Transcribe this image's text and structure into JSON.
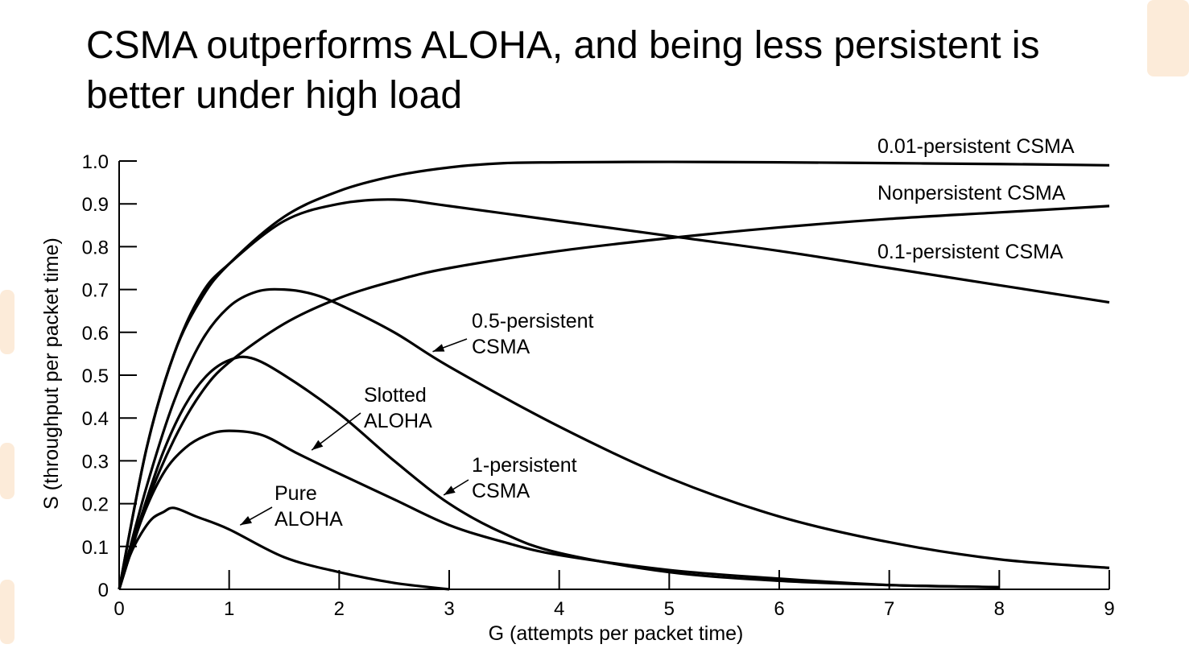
{
  "slide": {
    "title_line1": "CSMA outperforms ALOHA, and being less persistent is",
    "title_line2": "better under high load"
  },
  "colors": {
    "ink": "#000000",
    "background": "#ffffff",
    "accent": "#f5a34a"
  },
  "chart_data": {
    "type": "line",
    "xlabel": "G (attempts per packet time)",
    "ylabel": "S (throughput per packet time)",
    "xlim": [
      0,
      9
    ],
    "ylim": [
      0,
      1.0
    ],
    "x_ticks": [
      "0",
      "1",
      "2",
      "3",
      "4",
      "5",
      "6",
      "7",
      "8",
      "9"
    ],
    "y_ticks": [
      "0",
      "0.1",
      "0.2",
      "0.3",
      "0.4",
      "0.5",
      "0.6",
      "0.7",
      "0.8",
      "0.9",
      "1.0"
    ],
    "grid": false,
    "series": [
      {
        "name": "Pure ALOHA",
        "x": [
          0,
          0.1,
          0.2,
          0.3,
          0.4,
          0.5,
          0.7,
          1,
          1.5,
          2,
          2.5,
          3
        ],
        "y": [
          0,
          0.08,
          0.13,
          0.165,
          0.18,
          0.19,
          0.17,
          0.14,
          0.075,
          0.04,
          0.015,
          0.0
        ]
      },
      {
        "name": "Slotted ALOHA",
        "x": [
          0,
          0.2,
          0.4,
          0.6,
          0.8,
          1,
          1.3,
          1.6,
          2,
          2.5,
          3,
          3.5,
          4,
          5,
          6,
          7,
          8
        ],
        "y": [
          0,
          0.16,
          0.27,
          0.33,
          0.36,
          0.37,
          0.36,
          0.32,
          0.27,
          0.21,
          0.15,
          0.11,
          0.08,
          0.045,
          0.025,
          0.01,
          0.005
        ]
      },
      {
        "name": "1-persistent CSMA",
        "x": [
          0,
          0.2,
          0.4,
          0.6,
          0.8,
          1,
          1.2,
          1.5,
          2,
          2.5,
          3,
          3.5,
          4,
          5,
          6,
          7,
          8
        ],
        "y": [
          0,
          0.17,
          0.32,
          0.43,
          0.5,
          0.535,
          0.54,
          0.5,
          0.41,
          0.3,
          0.2,
          0.13,
          0.085,
          0.04,
          0.02,
          0.01,
          0.005
        ]
      },
      {
        "name": "0.5-persistent CSMA",
        "x": [
          0,
          0.25,
          0.5,
          0.75,
          1,
          1.25,
          1.5,
          1.75,
          2,
          2.5,
          3,
          4,
          5,
          6,
          7,
          8,
          9
        ],
        "y": [
          0,
          0.24,
          0.44,
          0.58,
          0.66,
          0.695,
          0.7,
          0.69,
          0.665,
          0.6,
          0.52,
          0.38,
          0.26,
          0.17,
          0.11,
          0.07,
          0.05
        ]
      },
      {
        "name": "Nonpersistent CSMA",
        "x": [
          0,
          0.25,
          0.5,
          0.75,
          1,
          1.5,
          2,
          2.5,
          3,
          4,
          5,
          6,
          7,
          8,
          9
        ],
        "y": [
          0,
          0.2,
          0.35,
          0.46,
          0.53,
          0.62,
          0.68,
          0.72,
          0.75,
          0.79,
          0.82,
          0.845,
          0.865,
          0.88,
          0.895
        ]
      },
      {
        "name": "0.1-persistent CSMA",
        "x": [
          0,
          0.25,
          0.5,
          0.75,
          1,
          1.5,
          2,
          2.5,
          3,
          4,
          5,
          6,
          7,
          8,
          9
        ],
        "y": [
          0,
          0.33,
          0.55,
          0.69,
          0.76,
          0.86,
          0.9,
          0.91,
          0.895,
          0.86,
          0.825,
          0.79,
          0.75,
          0.71,
          0.67
        ]
      },
      {
        "name": "0.01-persistent CSMA",
        "x": [
          0,
          0.25,
          0.5,
          0.75,
          1,
          1.5,
          2,
          2.5,
          3,
          3.5,
          4,
          5,
          6,
          7,
          8,
          9
        ],
        "y": [
          0,
          0.33,
          0.55,
          0.68,
          0.76,
          0.87,
          0.93,
          0.965,
          0.985,
          0.995,
          0.997,
          0.998,
          0.997,
          0.995,
          0.993,
          0.99
        ]
      }
    ],
    "annotations": [
      {
        "id": "ann-001",
        "lines": [
          "0.01-persistent CSMA"
        ],
        "anchor": "end-label",
        "series": "0.01-persistent CSMA"
      },
      {
        "id": "ann-nonp",
        "lines": [
          "Nonpersistent CSMA"
        ],
        "anchor": "end-label",
        "series": "Nonpersistent CSMA"
      },
      {
        "id": "ann-01",
        "lines": [
          "0.1-persistent CSMA"
        ],
        "anchor": "end-label",
        "series": "0.1-persistent CSMA"
      },
      {
        "id": "ann-05",
        "lines": [
          "0.5-persistent",
          "CSMA"
        ],
        "arrow_to": [
          2.85,
          0.555
        ],
        "series": "0.5-persistent CSMA"
      },
      {
        "id": "ann-slotted",
        "lines": [
          "Slotted",
          "ALOHA"
        ],
        "arrow_to": [
          1.75,
          0.325
        ],
        "series": "Slotted ALOHA"
      },
      {
        "id": "ann-1p",
        "lines": [
          "1-persistent",
          "CSMA"
        ],
        "arrow_to": [
          2.95,
          0.22
        ],
        "series": "1-persistent CSMA"
      },
      {
        "id": "ann-pure",
        "lines": [
          "Pure",
          "ALOHA"
        ],
        "arrow_to": [
          1.1,
          0.15
        ],
        "series": "Pure ALOHA"
      }
    ]
  }
}
